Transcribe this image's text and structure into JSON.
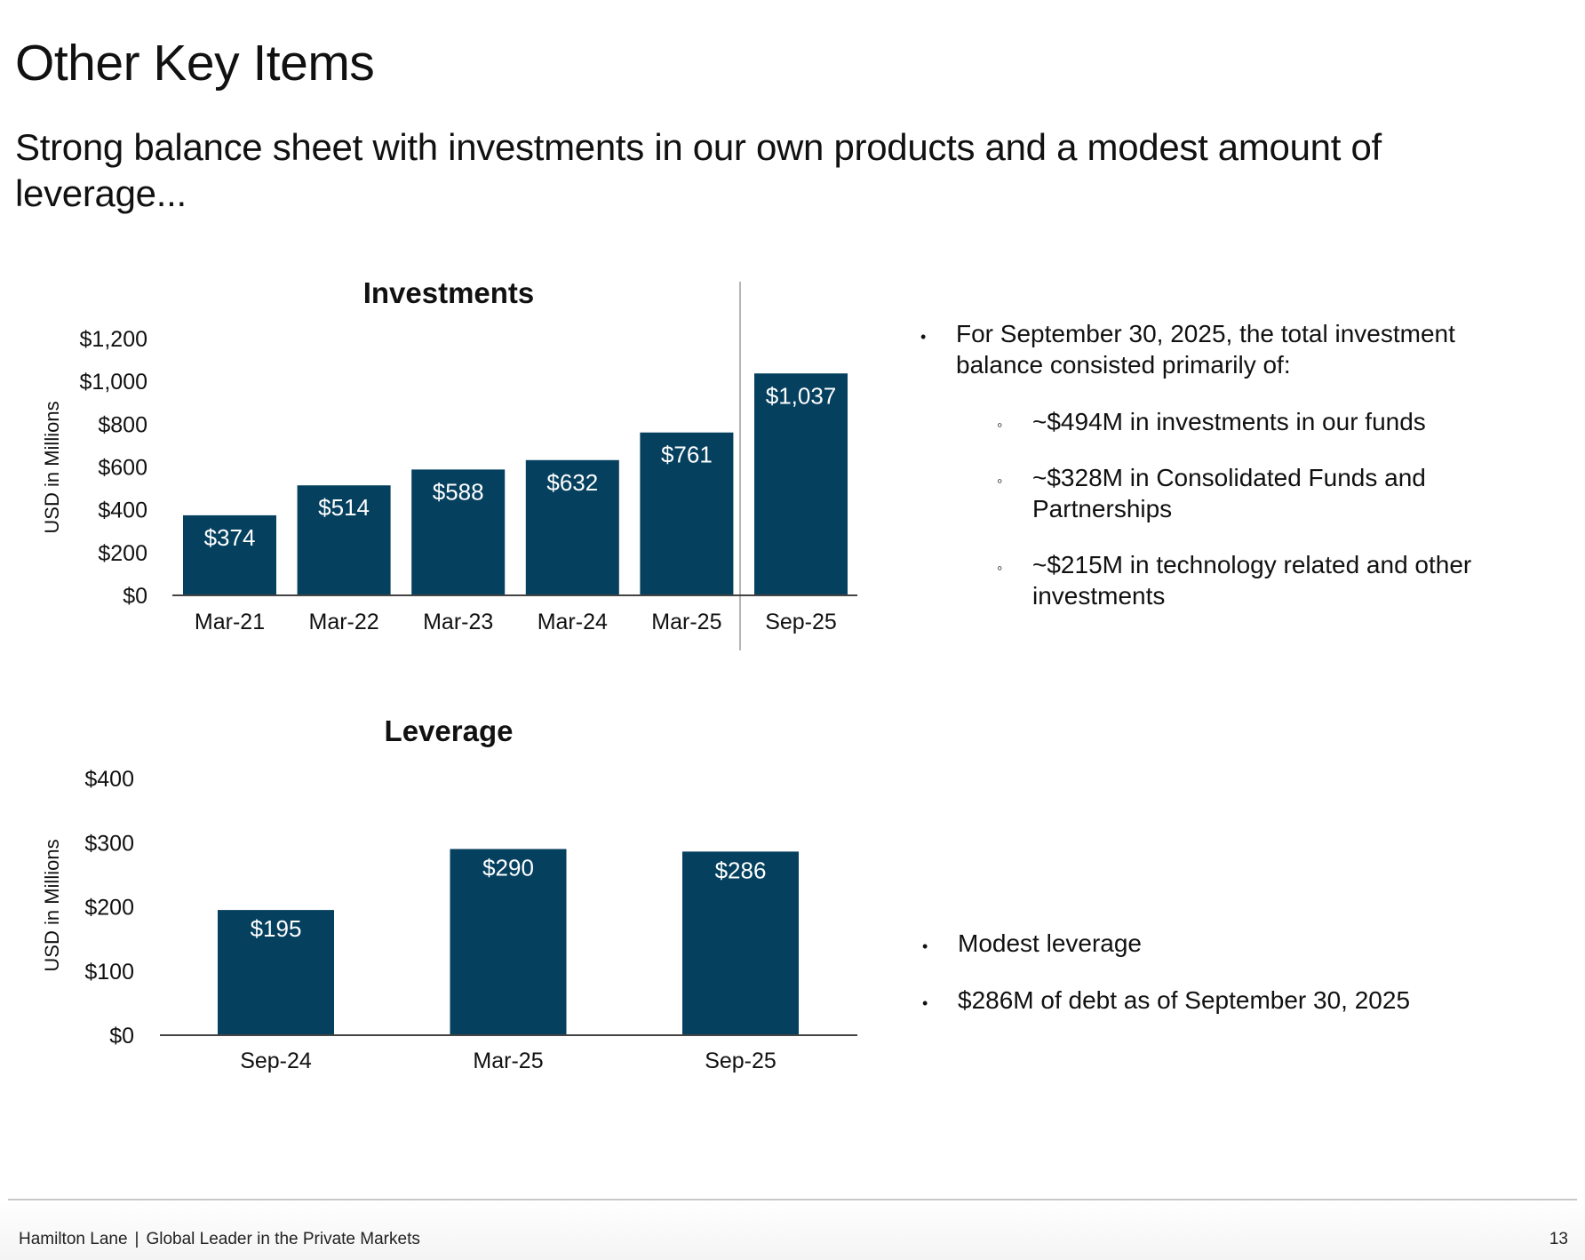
{
  "page": {
    "title": "Other Key Items",
    "subtitle": "Strong balance sheet with investments in our own products and a modest amount of leverage..."
  },
  "chart_data": [
    {
      "type": "bar",
      "title": "Investments",
      "ylabel": "USD in Millions",
      "categories": [
        "Mar-21",
        "Mar-22",
        "Mar-23",
        "Mar-24",
        "Mar-25",
        "Sep-25"
      ],
      "values": [
        374,
        514,
        588,
        632,
        761,
        1037
      ],
      "data_labels": [
        "$374",
        "$514",
        "$588",
        "$632",
        "$761",
        "$1,037"
      ],
      "yticks": [
        "$0",
        "$200",
        "$400",
        "$600",
        "$800",
        "$1,000",
        "$1,200"
      ],
      "ylim": [
        0,
        1200
      ],
      "bar_color": "#05405f",
      "grid": false
    },
    {
      "type": "bar",
      "title": "Leverage",
      "ylabel": "USD in Millions",
      "categories": [
        "Sep-24",
        "Mar-25",
        "Sep-25"
      ],
      "values": [
        195,
        290,
        286
      ],
      "data_labels": [
        "$195",
        "$290",
        "$286"
      ],
      "yticks": [
        "$0",
        "$100",
        "$200",
        "$300",
        "$400"
      ],
      "ylim": [
        0,
        400
      ],
      "bar_color": "#05405f",
      "grid": false
    }
  ],
  "investments_notes": {
    "intro": "For September 30, 2025, the total investment balance consisted primarily of:",
    "items": [
      "~$494M in investments in our funds",
      "~$328M in Consolidated Funds and Partnerships",
      "~$215M in technology related and other investments"
    ]
  },
  "leverage_notes": {
    "items": [
      "Modest leverage",
      "$286M of debt as of September 30, 2025"
    ]
  },
  "footer": {
    "company": "Hamilton Lane",
    "separator": "|",
    "tagline": "Global Leader in the Private Markets",
    "page_number": "13"
  }
}
